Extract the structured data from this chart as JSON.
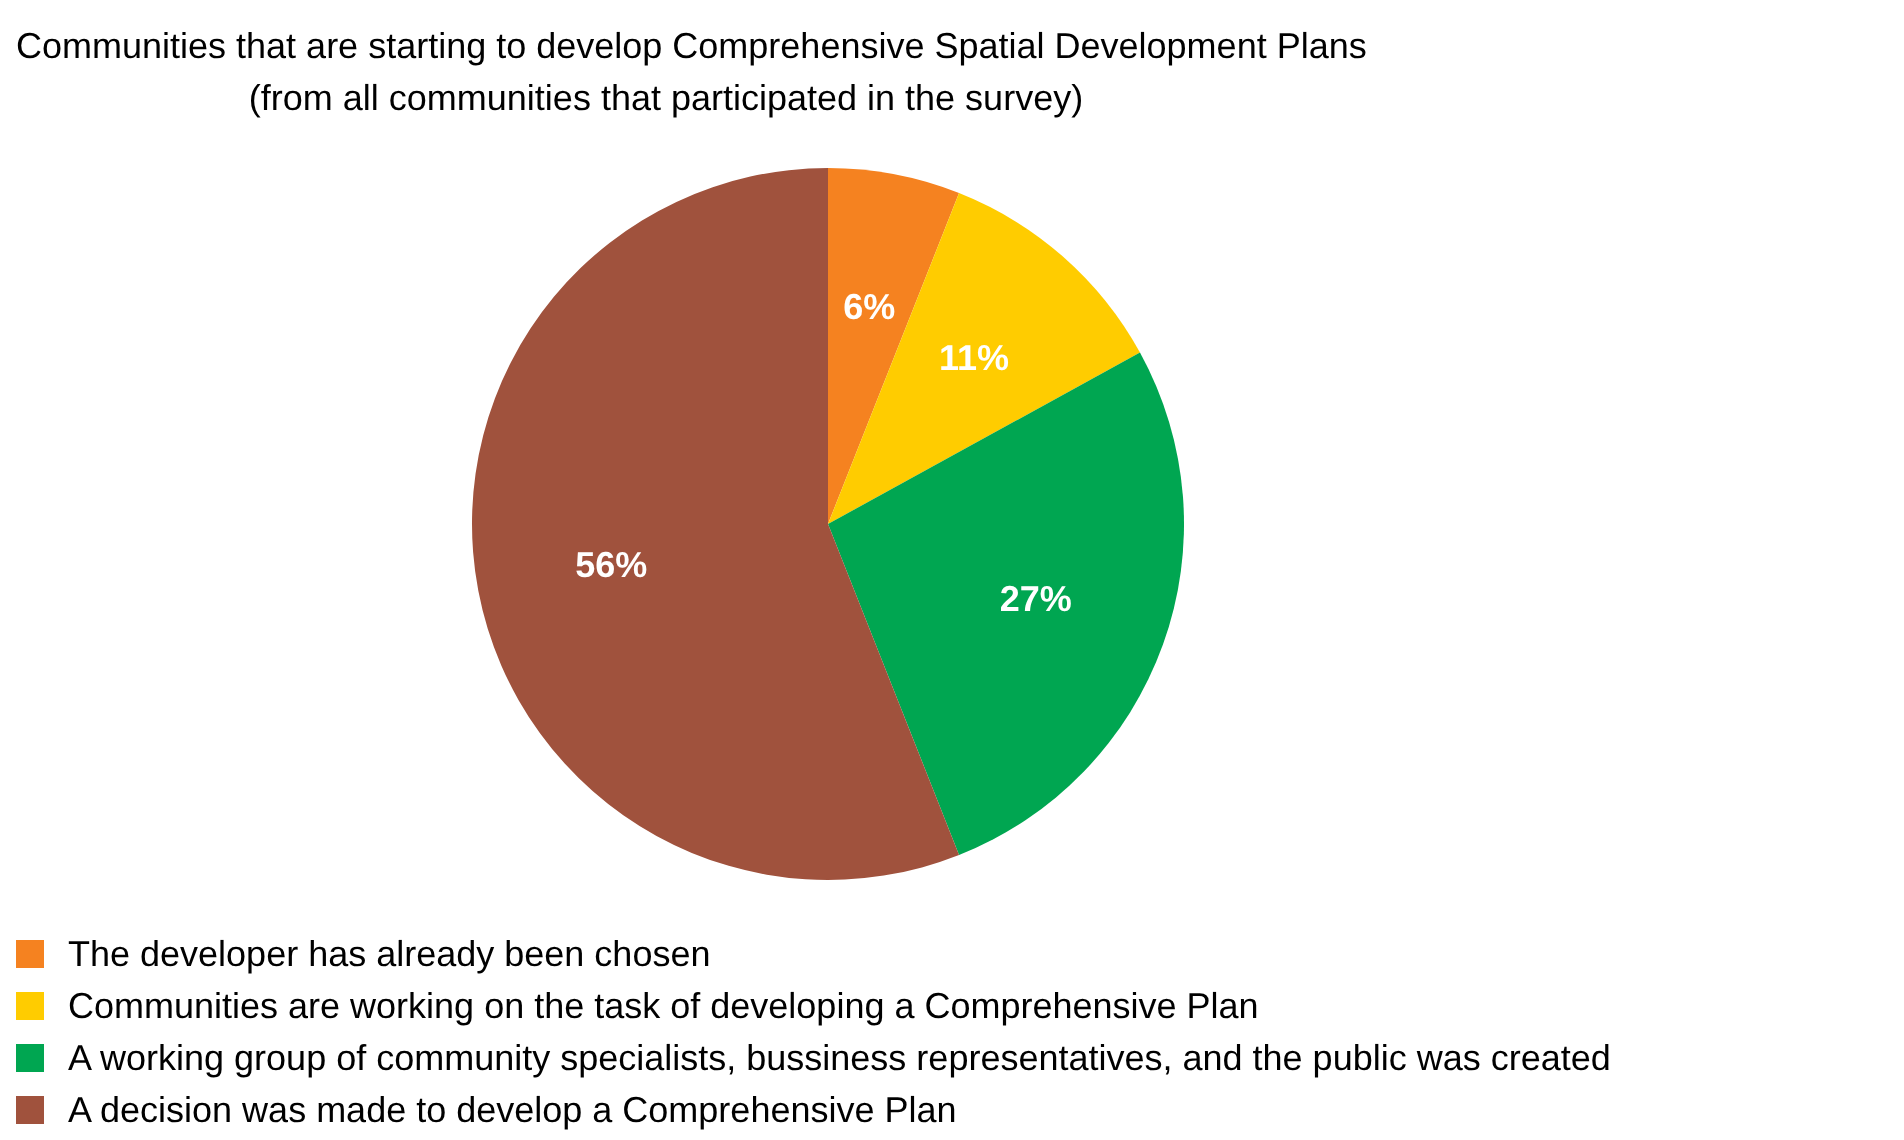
{
  "chart_data": {
    "type": "pie",
    "title": "Communities that are starting to develop Comprehensive Spatial Development Plans",
    "subtitle": "(from all communities that participated in the survey)",
    "categories": [
      "The developer has already been chosen",
      "Communities are working on the task of developing a Comprehensive Plan",
      "A working group of community specialists, bussiness representatives, and the public was created",
      "A decision was made to develop a Comprehensive Plan"
    ],
    "values": [
      6,
      11,
      27,
      56
    ],
    "value_labels": [
      "6%",
      "11%",
      "27%",
      "56%"
    ],
    "colors": [
      "#f58220",
      "#ffcc00",
      "#00a651",
      "#a0523d"
    ],
    "legend": "bottom left"
  }
}
